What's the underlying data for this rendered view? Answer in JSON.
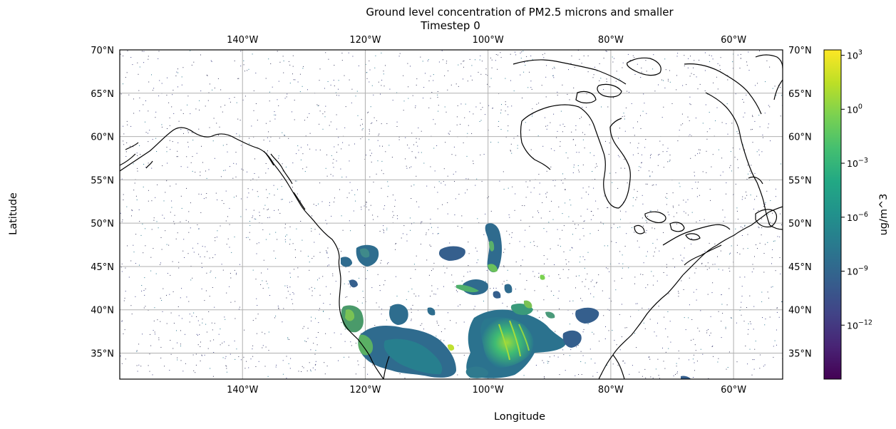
{
  "map": {
    "title_line1": "Ground level concentration of PM2.5 microns and smaller",
    "title_line2": "Timestep 0",
    "xlabel": "Longitude",
    "ylabel": "Latitude",
    "lon_ticks": [
      "140°W",
      "120°W",
      "100°W",
      "80°W",
      "60°W"
    ],
    "lat_ticks": [
      "70°N",
      "65°N",
      "60°N",
      "55°N",
      "50°N",
      "45°N",
      "40°N",
      "35°N"
    ],
    "extent": {
      "lon_min": -160,
      "lon_max": -52,
      "lat_min": 32,
      "lat_max": 70
    },
    "gridlines": true,
    "colorbar": {
      "label": "ug/m^3",
      "scale": "log",
      "colormap": "viridis",
      "min_exp": -15,
      "max_exp": 3.3,
      "ticks": [
        {
          "base": "10",
          "exp": "3"
        },
        {
          "base": "10",
          "exp": "0"
        },
        {
          "base": "10",
          "exp": "−3"
        },
        {
          "base": "10",
          "exp": "−6"
        },
        {
          "base": "10",
          "exp": "−9"
        },
        {
          "base": "10",
          "exp": "−12"
        }
      ],
      "tick_values": [
        3,
        0,
        -3,
        -6,
        -9,
        -12
      ]
    },
    "colors": {
      "high": "#fde725",
      "mid_high": "#7ad151",
      "mid": "#22a884",
      "mid_low": "#2a788e",
      "low": "#414487",
      "lowest": "#440154",
      "grid": "#b0b0b0",
      "coast": "#000000"
    }
  }
}
